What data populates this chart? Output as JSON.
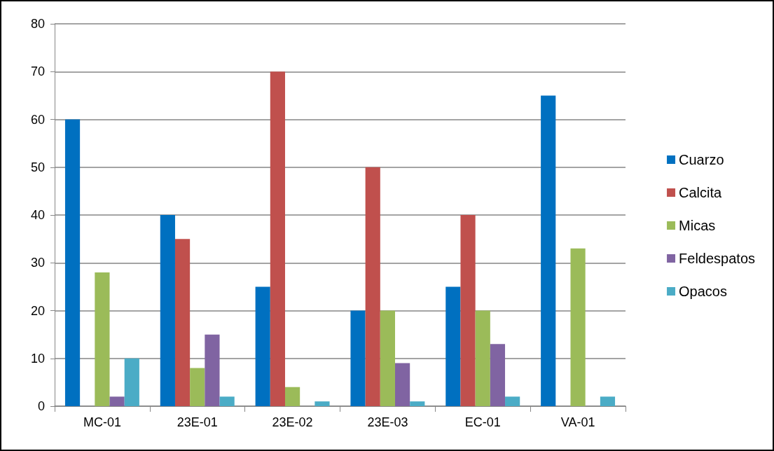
{
  "chart_data": {
    "type": "bar",
    "categories": [
      "MC-01",
      "23E-01",
      "23E-02",
      "23E-03",
      "EC-01",
      "VA-01"
    ],
    "series": [
      {
        "name": "Cuarzo",
        "color": "#0070c0",
        "values": [
          60,
          40,
          25,
          20,
          25,
          65
        ]
      },
      {
        "name": "Calcita",
        "color": "#c0504d",
        "values": [
          null,
          35,
          70,
          50,
          40,
          null
        ]
      },
      {
        "name": "Micas",
        "color": "#9bbb59",
        "values": [
          28,
          8,
          4,
          20,
          20,
          33
        ]
      },
      {
        "name": "Feldespatos",
        "color": "#8064a2",
        "values": [
          2,
          15,
          null,
          9,
          13,
          null
        ]
      },
      {
        "name": "Opacos",
        "color": "#4bacc6",
        "values": [
          10,
          2,
          1,
          1,
          2,
          2
        ]
      }
    ],
    "ylim": [
      0,
      80
    ],
    "yticks": [
      0,
      10,
      20,
      30,
      40,
      50,
      60,
      70,
      80
    ],
    "grid": "y",
    "legend": "right"
  }
}
